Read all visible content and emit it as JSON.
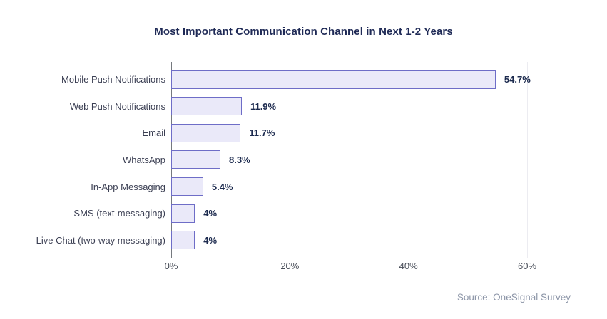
{
  "chart_data": {
    "type": "bar",
    "orientation": "horizontal",
    "title": "Most Important Communication Channel in Next 1-2 Years",
    "categories": [
      "Mobile Push Notifications",
      "Web Push Notifications",
      "Email",
      "WhatsApp",
      "In-App Messaging",
      "SMS (text-messaging)",
      "Live Chat (two-way messaging)"
    ],
    "values": [
      54.7,
      11.9,
      11.7,
      8.3,
      5.4,
      4,
      4
    ],
    "value_labels": [
      "54.7%",
      "11.9%",
      "11.7%",
      "8.3%",
      "5.4%",
      "4%",
      "4%"
    ],
    "xlabel": "",
    "ylabel": "",
    "xlim": [
      0,
      60
    ],
    "x_ticks": [
      {
        "value": 0,
        "label": "0%"
      },
      {
        "value": 20,
        "label": "20%"
      },
      {
        "value": 40,
        "label": "40%"
      },
      {
        "value": 60,
        "label": "60%"
      }
    ],
    "grid": true,
    "legend": false,
    "source": "Source: OneSignal Survey",
    "colors": {
      "bar_fill": "#EAE9F9",
      "bar_border": "#6E6DC7",
      "title": "#1F2A56",
      "category_label": "#3B3F53",
      "value_label": "#1D2B4F",
      "tick_label": "#474C57",
      "gridline": "#ECECF1",
      "axis_line": "#75797F",
      "source": "#8D96A8",
      "background": "#FFFFFF"
    }
  }
}
